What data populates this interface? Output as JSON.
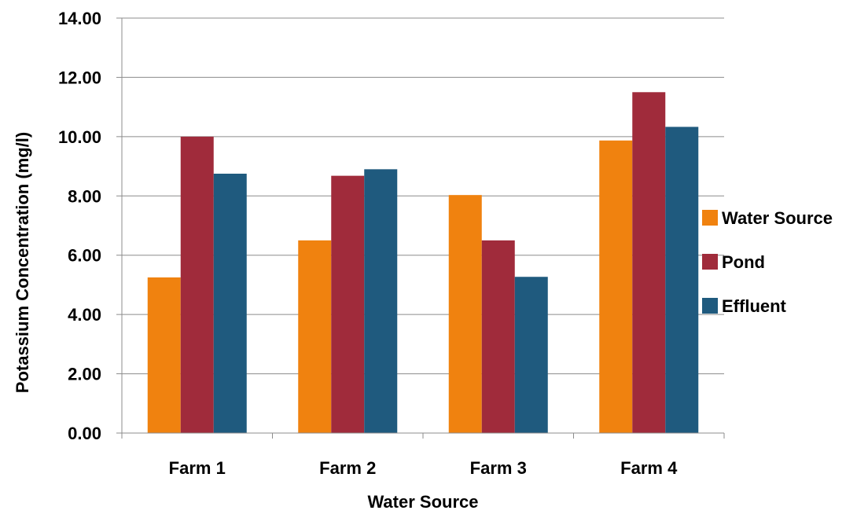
{
  "chart_data": {
    "type": "bar",
    "xlabel": "Water Source",
    "ylabel": "Potassium  Concentration (mg/l)",
    "categories": [
      "Farm 1",
      "Farm 2",
      "Farm 3",
      "Farm 4"
    ],
    "series": [
      {
        "name": "Water Source",
        "color": "#F0820F",
        "values": [
          5.25,
          6.5,
          8.03,
          9.87
        ]
      },
      {
        "name": "Pond",
        "color": "#A02B3B",
        "values": [
          10.0,
          8.68,
          6.5,
          11.5
        ]
      },
      {
        "name": "Effluent",
        "color": "#1F5A7E",
        "values": [
          8.75,
          8.9,
          5.27,
          10.33
        ]
      }
    ],
    "ylim": [
      0,
      14
    ],
    "yticks": [
      0,
      2,
      4,
      6,
      8,
      10,
      12,
      14
    ],
    "ytick_labels": [
      "0.00",
      "2.00",
      "4.00",
      "6.00",
      "8.00",
      "10.00",
      "12.00",
      "14.00"
    ],
    "grid": true,
    "legend_position": "right"
  }
}
